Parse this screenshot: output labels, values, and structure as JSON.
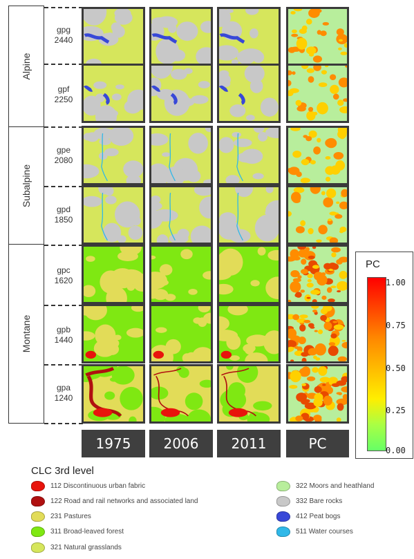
{
  "zones": [
    {
      "label": "Alpine"
    },
    {
      "label": "Subalpine"
    },
    {
      "label": "Montane"
    }
  ],
  "plots": [
    {
      "code": "gpg",
      "elevation": "2440"
    },
    {
      "code": "gpf",
      "elevation": "2250"
    },
    {
      "code": "gpe",
      "elevation": "2080"
    },
    {
      "code": "gpd",
      "elevation": "1850"
    },
    {
      "code": "gpc",
      "elevation": "1620"
    },
    {
      "code": "gpb",
      "elevation": "1440"
    },
    {
      "code": "gpa",
      "elevation": "1240"
    }
  ],
  "columns": [
    "1975",
    "2006",
    "2011",
    "PC"
  ],
  "pc_legend": {
    "title": "PC",
    "ticks": [
      "1.00",
      "0.75",
      "0.50",
      "0.25",
      "0.00"
    ],
    "colors": [
      "#ff0000",
      "#ff8800",
      "#ffee00",
      "#aaff44",
      "#66ff66"
    ]
  },
  "legend": {
    "title": "CLC 3rd level",
    "items": [
      {
        "label": "112 Discontinuous urban fabric",
        "color": "#e8140c"
      },
      {
        "label": "122 Road and rail networks and associated land",
        "color": "#b01010"
      },
      {
        "label": "231 Pastures",
        "color": "#e2dc58"
      },
      {
        "label": "311 Broad-leaved forest",
        "color": "#7fe812"
      },
      {
        "label": "321 Natural grasslands",
        "color": "#d6e65c"
      },
      {
        "label": "322 Moors and heathland",
        "color": "#b8ee9c"
      },
      {
        "label": "332 Bare rocks",
        "color": "#c8c8c8"
      },
      {
        "label": "412 Peat bogs",
        "color": "#3848d8"
      },
      {
        "label": "511 Water courses",
        "color": "#30b8e8"
      }
    ]
  }
}
